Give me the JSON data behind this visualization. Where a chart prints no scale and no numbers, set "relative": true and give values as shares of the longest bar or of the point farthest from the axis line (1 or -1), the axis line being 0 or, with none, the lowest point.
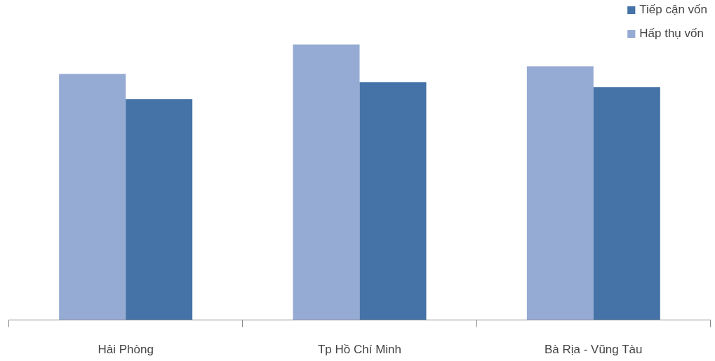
{
  "chart_data": {
    "type": "bar",
    "relative": true,
    "categories": [
      "Hải Phòng",
      "Tp Hồ Chí Minh",
      "Bà Rịa - Vũng Tàu"
    ],
    "series": [
      {
        "name": "Hấp thụ vốn",
        "color": "#95abd3",
        "values": [
          0.893,
          1,
          0.921
        ]
      },
      {
        "name": "Tiếp cận vốn",
        "color": "#4572a7",
        "values": [
          0.802,
          0.863,
          0.845
        ]
      }
    ],
    "legend": "top right",
    "grid": false
  }
}
